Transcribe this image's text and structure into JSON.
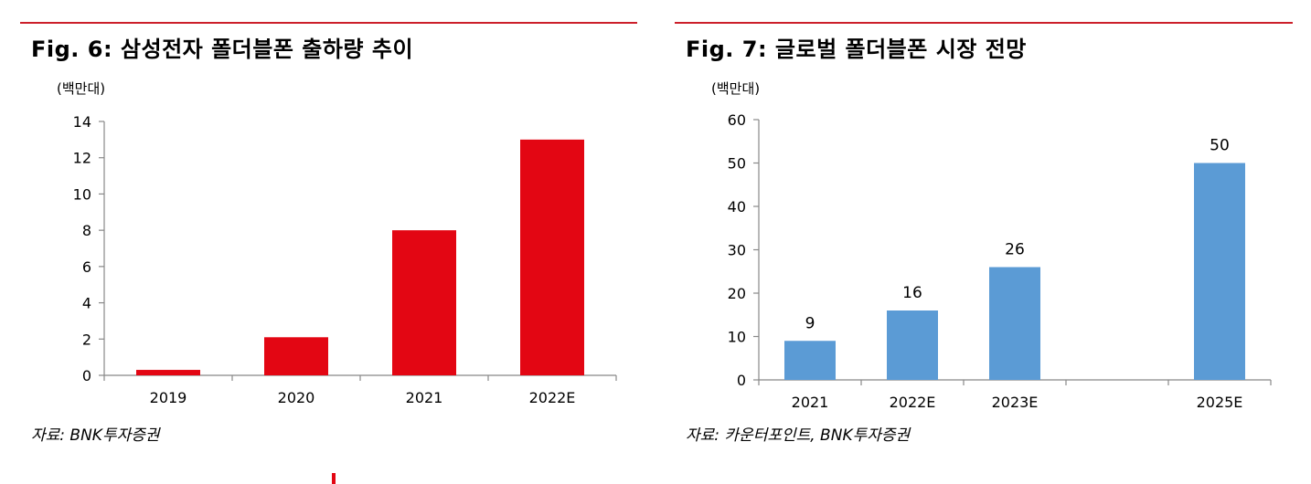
{
  "colors": {
    "rule": "#cc1f2a",
    "left_bars": "#e30613",
    "right_bars": "#5b9bd5",
    "axis": "#888888"
  },
  "left": {
    "title": "Fig. 6: 삼성전자 폴더블폰 출하량 추이",
    "unit": "(백만대)",
    "source": "자료: BNK투자증권"
  },
  "right": {
    "title": "Fig. 7: 글로벌 폴더블폰 시장 전망",
    "unit": "(백만대)",
    "source": "자료: 카운터포인트, BNK투자증권"
  },
  "chart_data": [
    {
      "type": "bar",
      "title": "Fig. 6: 삼성전자 폴더블폰 출하량 추이",
      "ylabel": "(백만대)",
      "categories": [
        "2019",
        "2020",
        "2021",
        "2022E"
      ],
      "values": [
        0.3,
        2.1,
        8.0,
        13.0
      ],
      "ylim": [
        0,
        14
      ],
      "yticks": [
        0,
        2,
        4,
        6,
        8,
        10,
        12,
        14
      ],
      "data_labels": false,
      "color": "#e30613",
      "grid": false
    },
    {
      "type": "bar",
      "title": "Fig. 7: 글로벌 폴더블폰 시장 전망",
      "ylabel": "(백만대)",
      "categories": [
        "2021",
        "2022E",
        "2023E",
        "",
        "2025E"
      ],
      "values": [
        9,
        16,
        26,
        null,
        50
      ],
      "ylim": [
        0,
        60
      ],
      "yticks": [
        0,
        10,
        20,
        30,
        40,
        50,
        60
      ],
      "data_labels": true,
      "color": "#5b9bd5",
      "grid": false
    }
  ]
}
